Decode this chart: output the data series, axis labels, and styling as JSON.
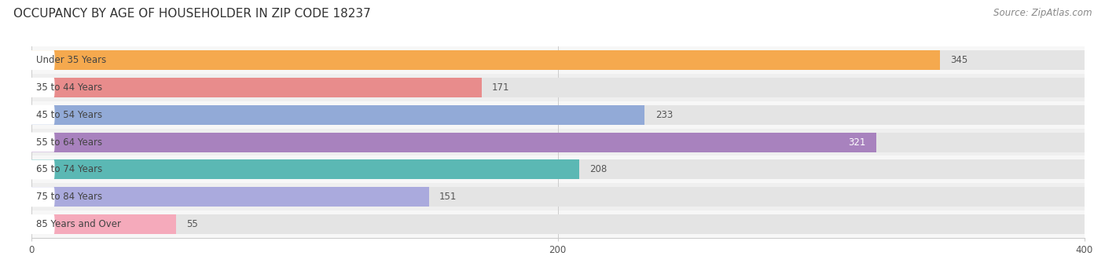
{
  "title": "OCCUPANCY BY AGE OF HOUSEHOLDER IN ZIP CODE 18237",
  "source": "Source: ZipAtlas.com",
  "categories": [
    "Under 35 Years",
    "35 to 44 Years",
    "45 to 54 Years",
    "55 to 64 Years",
    "65 to 74 Years",
    "75 to 84 Years",
    "85 Years and Over"
  ],
  "values": [
    345,
    171,
    233,
    321,
    208,
    151,
    55
  ],
  "bar_colors": [
    "#F5A94E",
    "#E88C8C",
    "#92AAD7",
    "#A882BE",
    "#5BB8B4",
    "#AAAADD",
    "#F5AABB"
  ],
  "bar_background": "#E4E4E4",
  "xlim": [
    0,
    400
  ],
  "xticks": [
    0,
    200,
    400
  ],
  "title_fontsize": 11,
  "source_fontsize": 8.5,
  "label_fontsize": 8.5,
  "value_fontsize": 8.5,
  "background_color": "#FFFFFF",
  "bar_height": 0.72,
  "row_bg_colors": [
    "#F7F7F7",
    "#EFEFEF"
  ],
  "white_value_indices": [
    3
  ],
  "white_value_color": "#FFFFFF",
  "dark_value_color": "#555555"
}
